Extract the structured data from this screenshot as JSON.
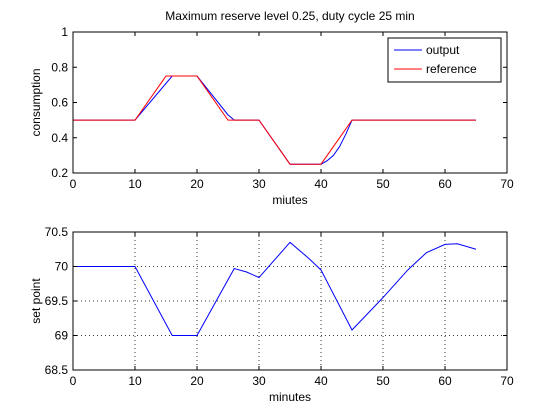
{
  "chart_data": [
    {
      "type": "line",
      "title": "Maximum reserve level 0.25, duty cycle 25 min",
      "xlabel": "miutes",
      "ylabel": "consumption",
      "xlim": [
        0,
        70
      ],
      "ylim": [
        0.2,
        1
      ],
      "xticks": [
        0,
        10,
        20,
        30,
        40,
        50,
        60,
        70
      ],
      "yticks": [
        0.2,
        0.4,
        0.6,
        0.8,
        1
      ],
      "grid": false,
      "legend": "top-right",
      "series": [
        {
          "name": "output",
          "color": "#0000ff",
          "x": [
            0,
            10,
            16,
            20,
            25,
            26,
            30,
            35,
            40,
            41,
            42,
            43,
            44,
            45,
            65
          ],
          "y": [
            0.5,
            0.5,
            0.75,
            0.75,
            0.53,
            0.5,
            0.5,
            0.25,
            0.25,
            0.27,
            0.3,
            0.35,
            0.42,
            0.5,
            0.5
          ]
        },
        {
          "name": "reference",
          "color": "#ff0000",
          "x": [
            0,
            10,
            15,
            20,
            25,
            30,
            35,
            40,
            45,
            65
          ],
          "y": [
            0.5,
            0.5,
            0.75,
            0.75,
            0.5,
            0.5,
            0.25,
            0.25,
            0.5,
            0.5
          ]
        }
      ]
    },
    {
      "type": "line",
      "title": "",
      "xlabel": "minutes",
      "ylabel": "set point",
      "xlim": [
        0,
        70
      ],
      "ylim": [
        68.5,
        70.5
      ],
      "xticks": [
        0,
        10,
        20,
        30,
        40,
        50,
        60,
        70
      ],
      "yticks": [
        68.5,
        69,
        69.5,
        70,
        70.5
      ],
      "grid": true,
      "legend": "none",
      "series": [
        {
          "color": "#0000ff",
          "x": [
            0,
            10,
            16,
            20,
            26,
            28,
            30,
            35,
            38,
            40,
            45,
            50,
            54,
            57,
            60,
            62,
            65
          ],
          "y": [
            70.0,
            70.0,
            69.0,
            69.0,
            69.97,
            69.92,
            69.84,
            70.35,
            70.12,
            69.95,
            69.08,
            69.55,
            69.95,
            70.2,
            70.32,
            70.33,
            70.25
          ]
        }
      ]
    }
  ]
}
